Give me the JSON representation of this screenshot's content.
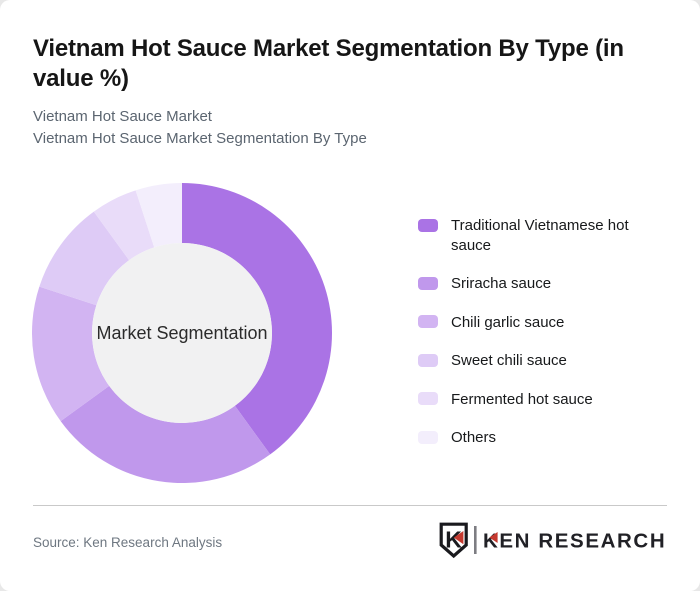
{
  "header": {
    "title": "Vietnam Hot Sauce Market Segmentation By Type (in value %)",
    "subtitle_line1": "Vietnam Hot Sauce Market",
    "subtitle_line2": "Vietnam Hot Sauce Market Segmentation By Type"
  },
  "chart_data": {
    "type": "pie",
    "variant": "donut",
    "title": "Vietnam Hot Sauce Market Segmentation By Type (in value %)",
    "center_label": "Market Segmentation",
    "categories": [
      "Traditional Vietnamese hot sauce",
      "Sriracha sauce",
      "Chili garlic sauce",
      "Sweet chili sauce",
      "Fermented hot sauce",
      "Others"
    ],
    "values": [
      40,
      25,
      15,
      10,
      5,
      5
    ],
    "unit": "%",
    "colors": [
      "#aa73e5",
      "#c098ec",
      "#d2b4f2",
      "#decbf6",
      "#e9dcf9",
      "#f3eefc"
    ],
    "start_angle_deg": 0,
    "direction": "clockwise",
    "inner_radius_ratio": 0.6,
    "inner_circle_color": "#f1f1f2",
    "legend_position": "right"
  },
  "footer": {
    "source": "Source: Ken Research Analysis",
    "logo_badge_letter": "K",
    "logo_text": "KEN RESEARCH",
    "logo_red": "#c5392f",
    "logo_dark": "#212126"
  }
}
